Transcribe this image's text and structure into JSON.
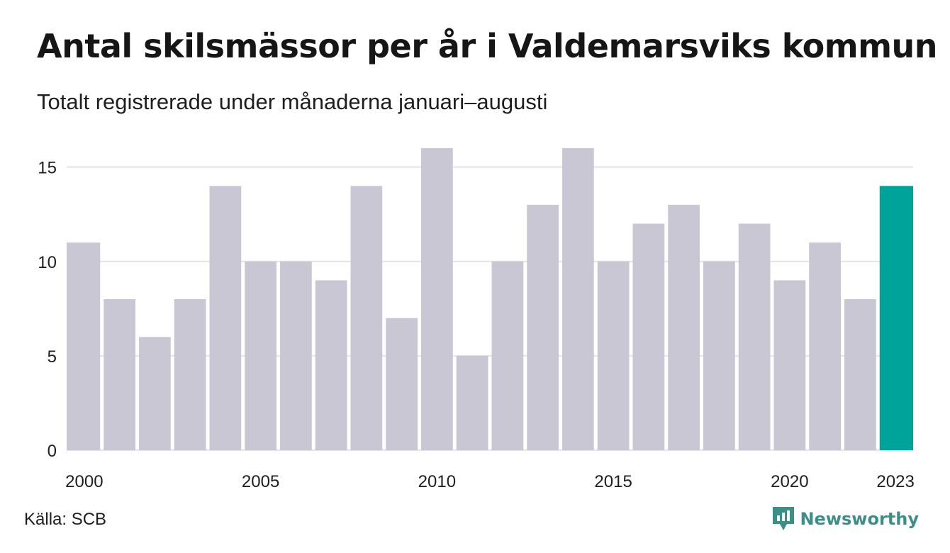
{
  "chart_data": {
    "type": "bar",
    "title": "Antal skilsmässor per år i Valdemarsviks kommun",
    "subtitle": "Totalt registrerade under månaderna januari–augusti",
    "categories": [
      "2000",
      "2001",
      "2002",
      "2003",
      "2004",
      "2005",
      "2006",
      "2007",
      "2008",
      "2009",
      "2010",
      "2011",
      "2012",
      "2013",
      "2014",
      "2015",
      "2016",
      "2017",
      "2018",
      "2019",
      "2020",
      "2021",
      "2022",
      "2023"
    ],
    "values": [
      11,
      8,
      6,
      8,
      14,
      10,
      10,
      9,
      14,
      7,
      16,
      5,
      10,
      13,
      16,
      10,
      12,
      13,
      10,
      12,
      9,
      11,
      8,
      14
    ],
    "x_tick_labels": [
      "2000",
      "2005",
      "2010",
      "2015",
      "2020",
      "2023"
    ],
    "y_ticks": [
      0,
      5,
      10,
      15
    ],
    "ylim": [
      0,
      16
    ],
    "xlabel": "",
    "ylabel": "",
    "grid": true,
    "highlight_category": "2023",
    "colors": {
      "bar": "#c8c7d3",
      "highlight": "#00a39a",
      "grid": "#e4e4e4",
      "text": "#1e1e1e"
    }
  },
  "footer": {
    "source": "Källa: SCB",
    "brand": "Newsworthy",
    "brand_icon": "newsworthy-logo-icon",
    "brand_color": "#3a8f86"
  }
}
